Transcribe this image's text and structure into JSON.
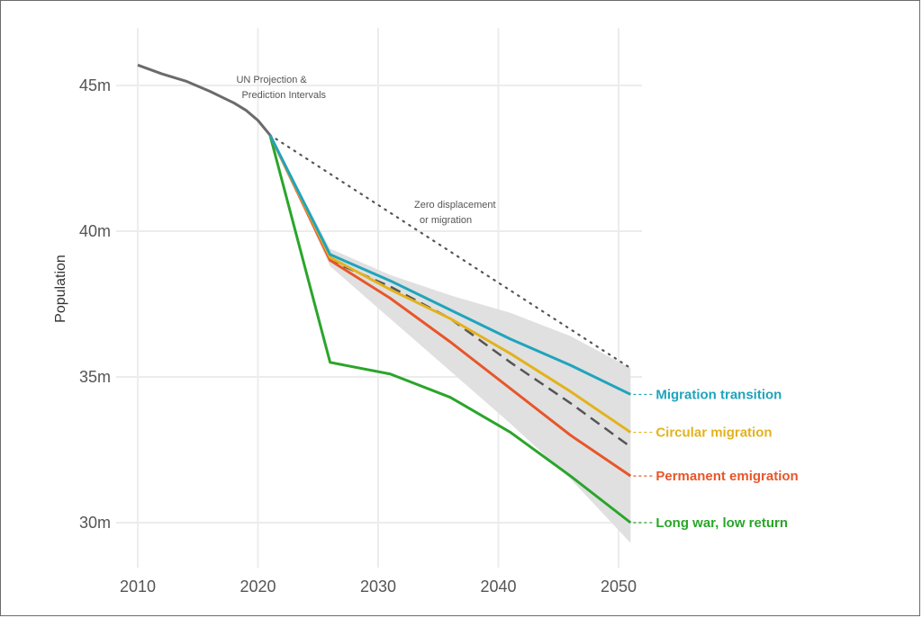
{
  "chart_data": {
    "type": "line",
    "title": "",
    "xlabel": "",
    "ylabel": "Population",
    "xlim": [
      2010,
      2051
    ],
    "ylim": [
      28,
      47
    ],
    "x_ticks": [
      2010,
      2020,
      2030,
      2040,
      2050
    ],
    "x_tick_labels": [
      "2010",
      "2020",
      "2030",
      "2040",
      "2050"
    ],
    "y_ticks": [
      30,
      35,
      40,
      45
    ],
    "y_tick_labels": [
      "30m",
      "35m",
      "40m",
      "45m"
    ],
    "grid": true,
    "historical": {
      "name": "Historical",
      "color": "#6b6b6b",
      "x": [
        2010,
        2012,
        2014,
        2016,
        2018,
        2019,
        2020,
        2021
      ],
      "y": [
        45.7,
        45.4,
        45.15,
        44.8,
        44.4,
        44.15,
        43.8,
        43.3
      ]
    },
    "annotations": [
      {
        "id": "un",
        "lines": [
          "UN Projection &",
          "Prediction Intervals"
        ],
        "x": 2018.2,
        "y": 45.1
      },
      {
        "id": "zero",
        "lines": [
          "Zero displacement",
          "or migration"
        ],
        "x": 2033,
        "y": 40.8
      }
    ],
    "band": {
      "name": "UN prediction interval",
      "color": "#e0e0e0",
      "x": [
        2026,
        2031,
        2036,
        2041,
        2046,
        2051
      ],
      "upper": [
        39.4,
        38.5,
        37.8,
        37.2,
        36.4,
        35.3
      ],
      "lower": [
        38.8,
        37.0,
        35.2,
        33.4,
        31.5,
        29.3
      ]
    },
    "median_projection": {
      "name": "UN median projection",
      "color": "#555555",
      "style": "dashed",
      "x": [
        2021,
        2026,
        2031,
        2036,
        2041,
        2046,
        2051
      ],
      "y": [
        43.3,
        39.0,
        38.1,
        37.0,
        35.5,
        34.1,
        32.6
      ]
    },
    "zero_displacement": {
      "name": "Zero displacement or migration",
      "color": "#555555",
      "style": "dotted",
      "x": [
        2021,
        2051
      ],
      "y": [
        43.3,
        35.3
      ]
    },
    "series": [
      {
        "name": "Migration transition",
        "color": "#1fa4bd",
        "x": [
          2021,
          2026,
          2031,
          2036,
          2041,
          2046,
          2051
        ],
        "y": [
          43.3,
          39.2,
          38.3,
          37.3,
          36.3,
          35.4,
          34.4
        ]
      },
      {
        "name": "Circular migration",
        "color": "#e3b21c",
        "x": [
          2021,
          2026,
          2031,
          2036,
          2041,
          2046,
          2051
        ],
        "y": [
          43.3,
          39.1,
          38.0,
          37.0,
          35.8,
          34.5,
          33.1
        ]
      },
      {
        "name": "Permanent emigration",
        "color": "#e8562a",
        "x": [
          2021,
          2026,
          2031,
          2036,
          2041,
          2046,
          2051
        ],
        "y": [
          43.3,
          39.0,
          37.7,
          36.2,
          34.6,
          33.0,
          31.6
        ]
      },
      {
        "name": "Long war, low return",
        "color": "#2aa52a",
        "x": [
          2021,
          2026,
          2031,
          2036,
          2041,
          2046,
          2051
        ],
        "y": [
          43.3,
          35.5,
          35.1,
          34.3,
          33.1,
          31.6,
          30.0
        ]
      }
    ]
  }
}
